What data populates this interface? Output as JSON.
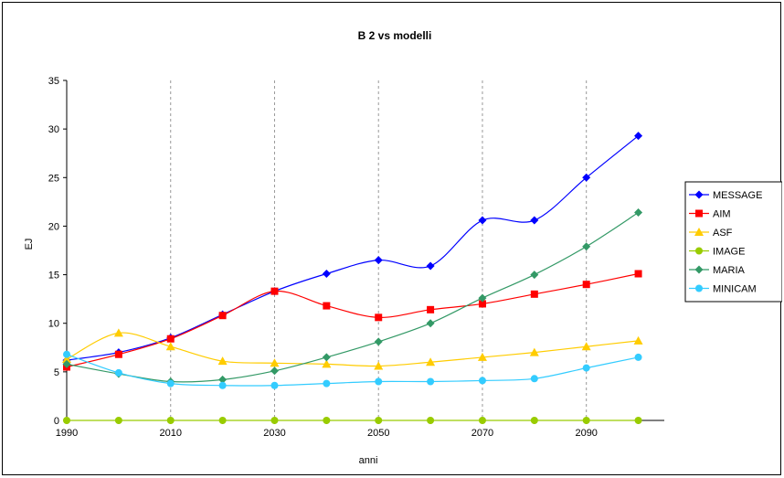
{
  "chart_data": {
    "type": "line",
    "title": "B 2 vs modelli",
    "xlabel": "anni",
    "ylabel": "EJ",
    "x": [
      1990,
      2000,
      2010,
      2020,
      2030,
      2040,
      2050,
      2060,
      2070,
      2080,
      2090,
      2100
    ],
    "xticks": [
      1990,
      2010,
      2030,
      2050,
      2070,
      2090
    ],
    "xlim": [
      1990,
      2100
    ],
    "ylim": [
      0,
      35
    ],
    "yticks": [
      0,
      5,
      10,
      15,
      20,
      25,
      30,
      35
    ],
    "grid": "vertical dashed",
    "legend_position": "right",
    "series": [
      {
        "name": "MESSAGE",
        "color": "#0000ff",
        "marker": "diamond",
        "values": [
          6.2,
          7.0,
          8.5,
          10.9,
          13.3,
          15.1,
          16.5,
          15.9,
          20.6,
          20.6,
          25.0,
          29.3
        ]
      },
      {
        "name": "AIM",
        "color": "#ff0000",
        "marker": "square",
        "values": [
          5.5,
          6.8,
          8.4,
          10.8,
          13.3,
          11.8,
          10.6,
          11.4,
          12.0,
          13.0,
          14.0,
          15.1
        ]
      },
      {
        "name": "ASF",
        "color": "#ffcc00",
        "marker": "triangle",
        "values": [
          6.3,
          9.0,
          7.6,
          6.1,
          5.9,
          5.8,
          5.6,
          6.0,
          6.5,
          7.0,
          7.6,
          8.2
        ]
      },
      {
        "name": "IMAGE",
        "color": "#99cc00",
        "marker": "circle",
        "values": [
          0,
          0,
          0,
          0,
          0,
          0,
          0,
          0,
          0,
          0,
          0,
          0
        ]
      },
      {
        "name": "MARIA",
        "color": "#339966",
        "marker": "diamond",
        "values": [
          5.8,
          4.8,
          4.0,
          4.2,
          5.1,
          6.5,
          8.1,
          10.0,
          12.6,
          15.0,
          17.9,
          21.4
        ]
      },
      {
        "name": "MINICAM",
        "color": "#33ccff",
        "marker": "circle",
        "values": [
          6.8,
          4.9,
          3.8,
          3.6,
          3.6,
          3.8,
          4.0,
          4.0,
          4.1,
          4.3,
          5.4,
          6.5
        ]
      }
    ]
  }
}
